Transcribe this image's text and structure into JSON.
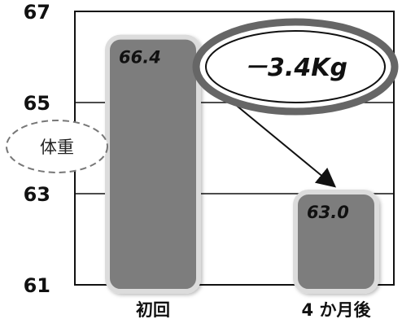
{
  "chart_data": {
    "type": "bar",
    "categories": [
      "初回",
      "4 か月後"
    ],
    "values": [
      66.4,
      63.0
    ],
    "data_labels": [
      "66.4",
      "63.0"
    ],
    "ylabel": "体重",
    "ylim": [
      61,
      67
    ],
    "yticks": [
      "61",
      "63",
      "65",
      "67"
    ],
    "grid": true,
    "annotation": "－3.4Kg",
    "colors": {
      "bar": "#7d7d7d",
      "bar_border": "#dcdcdc",
      "grid": "#111111",
      "arrow": "#111111"
    }
  }
}
